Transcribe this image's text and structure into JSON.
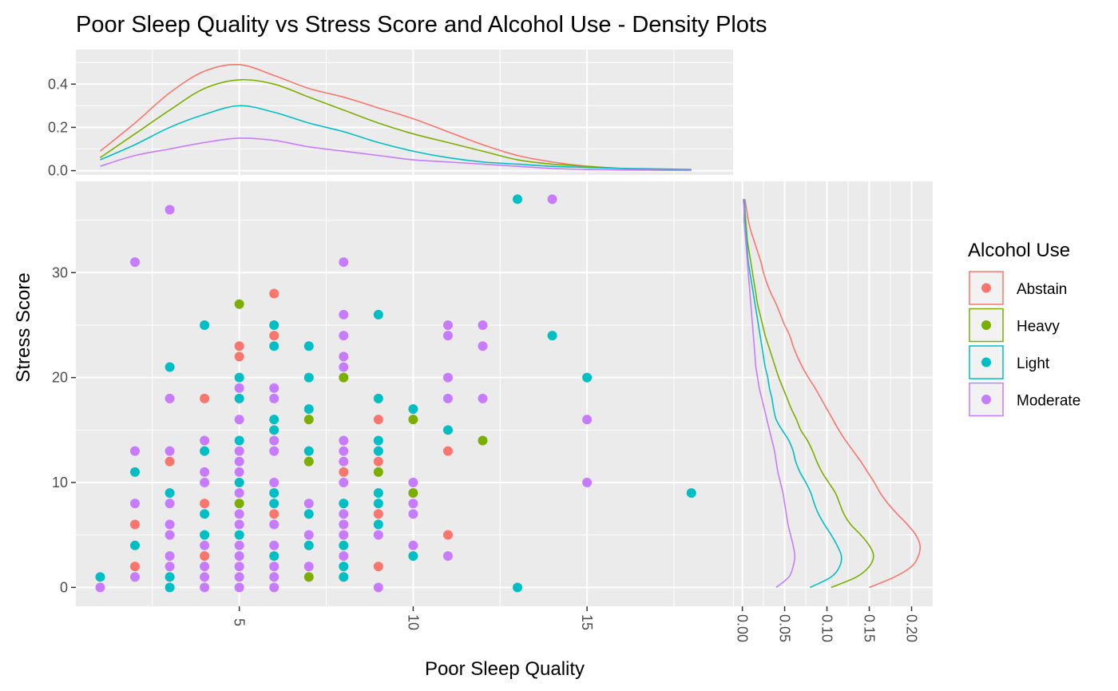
{
  "chart_data": {
    "type": "scatter",
    "title": "Poor Sleep Quality vs Stress Score and Alcohol Use - Density Plots",
    "xlabel": "Poor Sleep Quality",
    "ylabel": "Stress Score",
    "xlim": [
      0.3,
      19.2
    ],
    "ylim": [
      -1.8,
      38.7
    ],
    "x_ticks": [
      5,
      10,
      15
    ],
    "y_ticks": [
      0,
      10,
      20,
      30
    ],
    "grid": true,
    "legend": {
      "title": "Alcohol Use",
      "placement": "right",
      "entries": [
        "Abstain",
        "Heavy",
        "Light",
        "Moderate"
      ]
    },
    "colors": {
      "Abstain": "#F8766D",
      "Heavy": "#7CAE00",
      "Light": "#00BFC4",
      "Moderate": "#C77CFF"
    },
    "series": [
      {
        "name": "Abstain",
        "points": [
          [
            2,
            2
          ],
          [
            2,
            6
          ],
          [
            3,
            12
          ],
          [
            4,
            3
          ],
          [
            4,
            8
          ],
          [
            4,
            18
          ],
          [
            5,
            22
          ],
          [
            5,
            23
          ],
          [
            6,
            7
          ],
          [
            6,
            24
          ],
          [
            6,
            28
          ],
          [
            8,
            11
          ],
          [
            9,
            2
          ],
          [
            9,
            7
          ],
          [
            9,
            12
          ],
          [
            9,
            16
          ],
          [
            11,
            5
          ],
          [
            11,
            13
          ]
        ]
      },
      {
        "name": "Heavy",
        "points": [
          [
            5,
            8
          ],
          [
            5,
            27
          ],
          [
            7,
            1
          ],
          [
            7,
            12
          ],
          [
            7,
            16
          ],
          [
            8,
            20
          ],
          [
            9,
            11
          ],
          [
            10,
            9
          ],
          [
            10,
            16
          ],
          [
            12,
            14
          ]
        ]
      },
      {
        "name": "Light",
        "points": [
          [
            1,
            1
          ],
          [
            2,
            4
          ],
          [
            2,
            11
          ],
          [
            3,
            0
          ],
          [
            3,
            1
          ],
          [
            3,
            9
          ],
          [
            3,
            21
          ],
          [
            4,
            5
          ],
          [
            4,
            7
          ],
          [
            4,
            13
          ],
          [
            4,
            25
          ],
          [
            5,
            5
          ],
          [
            5,
            10
          ],
          [
            5,
            14
          ],
          [
            5,
            18
          ],
          [
            5,
            20
          ],
          [
            6,
            3
          ],
          [
            6,
            8
          ],
          [
            6,
            9
          ],
          [
            6,
            15
          ],
          [
            6,
            16
          ],
          [
            6,
            23
          ],
          [
            6,
            25
          ],
          [
            7,
            4
          ],
          [
            7,
            7
          ],
          [
            7,
            13
          ],
          [
            7,
            17
          ],
          [
            7,
            20
          ],
          [
            7,
            23
          ],
          [
            8,
            1
          ],
          [
            8,
            2
          ],
          [
            8,
            4
          ],
          [
            8,
            8
          ],
          [
            9,
            6
          ],
          [
            9,
            8
          ],
          [
            9,
            9
          ],
          [
            9,
            13
          ],
          [
            9,
            14
          ],
          [
            9,
            18
          ],
          [
            9,
            26
          ],
          [
            10,
            3
          ],
          [
            10,
            17
          ],
          [
            11,
            15
          ],
          [
            13,
            0
          ],
          [
            13,
            37
          ],
          [
            14,
            24
          ],
          [
            15,
            20
          ],
          [
            18,
            9
          ]
        ]
      },
      {
        "name": "Moderate",
        "points": [
          [
            1,
            0
          ],
          [
            2,
            1
          ],
          [
            2,
            8
          ],
          [
            2,
            13
          ],
          [
            2,
            31
          ],
          [
            3,
            2
          ],
          [
            3,
            3
          ],
          [
            3,
            5
          ],
          [
            3,
            6
          ],
          [
            3,
            8
          ],
          [
            3,
            13
          ],
          [
            3,
            18
          ],
          [
            3,
            36
          ],
          [
            4,
            0
          ],
          [
            4,
            1
          ],
          [
            4,
            2
          ],
          [
            4,
            4
          ],
          [
            4,
            10
          ],
          [
            4,
            11
          ],
          [
            4,
            14
          ],
          [
            5,
            0
          ],
          [
            5,
            1
          ],
          [
            5,
            2
          ],
          [
            5,
            3
          ],
          [
            5,
            4
          ],
          [
            5,
            6
          ],
          [
            5,
            7
          ],
          [
            5,
            9
          ],
          [
            5,
            11
          ],
          [
            5,
            12
          ],
          [
            5,
            13
          ],
          [
            5,
            16
          ],
          [
            5,
            19
          ],
          [
            6,
            0
          ],
          [
            6,
            1
          ],
          [
            6,
            2
          ],
          [
            6,
            4
          ],
          [
            6,
            6
          ],
          [
            6,
            10
          ],
          [
            6,
            13
          ],
          [
            6,
            14
          ],
          [
            6,
            18
          ],
          [
            6,
            19
          ],
          [
            7,
            2
          ],
          [
            7,
            5
          ],
          [
            7,
            8
          ],
          [
            8,
            3
          ],
          [
            8,
            5
          ],
          [
            8,
            6
          ],
          [
            8,
            7
          ],
          [
            8,
            10
          ],
          [
            8,
            12
          ],
          [
            8,
            13
          ],
          [
            8,
            14
          ],
          [
            8,
            21
          ],
          [
            8,
            22
          ],
          [
            8,
            24
          ],
          [
            8,
            26
          ],
          [
            8,
            31
          ],
          [
            9,
            0
          ],
          [
            9,
            5
          ],
          [
            10,
            4
          ],
          [
            10,
            7
          ],
          [
            10,
            8
          ],
          [
            10,
            10
          ],
          [
            11,
            3
          ],
          [
            11,
            18
          ],
          [
            11,
            20
          ],
          [
            11,
            24
          ],
          [
            11,
            25
          ],
          [
            12,
            18
          ],
          [
            12,
            23
          ],
          [
            12,
            25
          ],
          [
            14,
            37
          ],
          [
            15,
            10
          ],
          [
            15,
            16
          ]
        ]
      }
    ],
    "marginal_x_density": {
      "ylim": [
        -0.02,
        0.56
      ],
      "y_ticks": [
        "0.0",
        "0.2",
        "0.4"
      ],
      "x": [
        1,
        2,
        3,
        4,
        5,
        6,
        7,
        8,
        9,
        10,
        11,
        12,
        13,
        14,
        15,
        16,
        17,
        18
      ],
      "series": [
        {
          "name": "Abstain",
          "values": [
            0.09,
            0.22,
            0.36,
            0.46,
            0.49,
            0.44,
            0.38,
            0.34,
            0.29,
            0.24,
            0.18,
            0.12,
            0.07,
            0.04,
            0.02,
            0.01,
            0.005,
            0.002
          ]
        },
        {
          "name": "Heavy",
          "values": [
            0.06,
            0.17,
            0.28,
            0.38,
            0.42,
            0.4,
            0.34,
            0.28,
            0.22,
            0.17,
            0.13,
            0.09,
            0.05,
            0.03,
            0.02,
            0.01,
            0.005,
            0.002
          ]
        },
        {
          "name": "Light",
          "values": [
            0.05,
            0.12,
            0.2,
            0.26,
            0.3,
            0.27,
            0.22,
            0.18,
            0.13,
            0.09,
            0.06,
            0.04,
            0.03,
            0.02,
            0.015,
            0.01,
            0.008,
            0.005
          ]
        },
        {
          "name": "Moderate",
          "values": [
            0.02,
            0.07,
            0.1,
            0.13,
            0.15,
            0.14,
            0.11,
            0.09,
            0.07,
            0.05,
            0.04,
            0.03,
            0.02,
            0.01,
            0.005,
            0.003,
            0.002,
            0.001
          ]
        }
      ]
    },
    "marginal_y_density": {
      "xlim": [
        -0.01,
        0.225
      ],
      "x_ticks": [
        "0.00",
        "0.05",
        "0.10",
        "0.15",
        "0.20"
      ],
      "y": [
        0,
        1,
        2,
        3,
        4,
        5,
        6,
        7,
        8,
        9,
        10,
        11,
        12,
        13,
        14,
        15,
        16,
        17,
        18,
        19,
        20,
        21,
        22,
        23,
        24,
        25,
        26,
        27,
        28,
        29,
        30,
        31,
        32,
        33,
        34,
        35,
        36,
        37
      ],
      "series": [
        {
          "name": "Abstain",
          "values": [
            0.15,
            0.18,
            0.2,
            0.208,
            0.21,
            0.205,
            0.195,
            0.183,
            0.172,
            0.163,
            0.156,
            0.148,
            0.14,
            0.131,
            0.122,
            0.114,
            0.107,
            0.1,
            0.093,
            0.086,
            0.078,
            0.071,
            0.065,
            0.06,
            0.056,
            0.05,
            0.045,
            0.04,
            0.034,
            0.029,
            0.025,
            0.022,
            0.018,
            0.014,
            0.01,
            0.007,
            0.005,
            0.003
          ]
        },
        {
          "name": "Heavy",
          "values": [
            0.105,
            0.135,
            0.15,
            0.155,
            0.15,
            0.14,
            0.128,
            0.12,
            0.115,
            0.11,
            0.102,
            0.094,
            0.088,
            0.083,
            0.077,
            0.069,
            0.064,
            0.058,
            0.053,
            0.048,
            0.043,
            0.039,
            0.035,
            0.031,
            0.027,
            0.024,
            0.021,
            0.018,
            0.016,
            0.014,
            0.012,
            0.01,
            0.008,
            0.006,
            0.005,
            0.004,
            0.003,
            0.002
          ]
        },
        {
          "name": "Light",
          "values": [
            0.08,
            0.105,
            0.115,
            0.117,
            0.112,
            0.105,
            0.097,
            0.09,
            0.085,
            0.081,
            0.075,
            0.068,
            0.063,
            0.06,
            0.055,
            0.047,
            0.04,
            0.037,
            0.035,
            0.032,
            0.03,
            0.027,
            0.025,
            0.023,
            0.021,
            0.019,
            0.017,
            0.015,
            0.013,
            0.011,
            0.009,
            0.007,
            0.006,
            0.005,
            0.004,
            0.003,
            0.003,
            0.002
          ]
        },
        {
          "name": "Moderate",
          "values": [
            0.04,
            0.055,
            0.06,
            0.062,
            0.06,
            0.057,
            0.054,
            0.052,
            0.05,
            0.048,
            0.045,
            0.042,
            0.04,
            0.038,
            0.035,
            0.032,
            0.029,
            0.026,
            0.023,
            0.02,
            0.018,
            0.016,
            0.015,
            0.014,
            0.013,
            0.012,
            0.011,
            0.01,
            0.009,
            0.008,
            0.007,
            0.006,
            0.005,
            0.004,
            0.003,
            0.002,
            0.002,
            0.001
          ]
        }
      ]
    }
  }
}
